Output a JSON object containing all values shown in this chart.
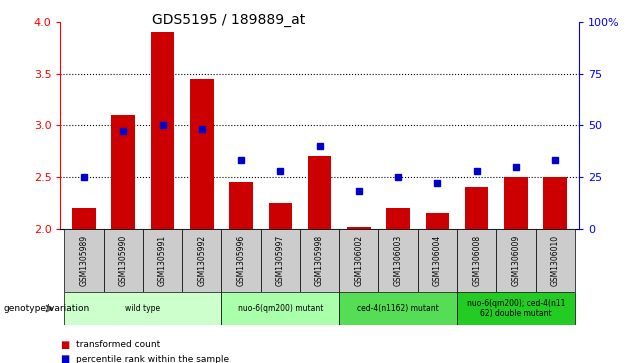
{
  "title": "GDS5195 / 189889_at",
  "samples": [
    "GSM1305989",
    "GSM1305990",
    "GSM1305991",
    "GSM1305992",
    "GSM1305996",
    "GSM1305997",
    "GSM1305998",
    "GSM1306002",
    "GSM1306003",
    "GSM1306004",
    "GSM1306008",
    "GSM1306009",
    "GSM1306010"
  ],
  "bar_values": [
    2.2,
    3.1,
    3.9,
    3.45,
    2.45,
    2.25,
    2.7,
    2.02,
    2.2,
    2.15,
    2.4,
    2.5,
    2.5
  ],
  "dot_values": [
    25,
    47,
    50,
    48,
    33,
    28,
    40,
    18,
    25,
    22,
    28,
    30,
    33
  ],
  "ylim_left": [
    2.0,
    4.0
  ],
  "ylim_right": [
    0,
    100
  ],
  "bar_color": "#cc0000",
  "dot_color": "#0000cc",
  "groups": [
    {
      "label": "wild type",
      "indices": [
        0,
        1,
        2,
        3
      ],
      "color": "#ccffcc"
    },
    {
      "label": "nuo-6(qm200) mutant",
      "indices": [
        4,
        5,
        6
      ],
      "color": "#aaffaa"
    },
    {
      "label": "ced-4(n1162) mutant",
      "indices": [
        7,
        8,
        9
      ],
      "color": "#55dd55"
    },
    {
      "label": "nuo-6(qm200); ced-4(n11\n62) double mutant",
      "indices": [
        10,
        11,
        12
      ],
      "color": "#22cc22"
    }
  ],
  "yticks_left": [
    2.0,
    2.5,
    3.0,
    3.5,
    4.0
  ],
  "yticks_right": [
    0,
    25,
    50,
    75,
    100
  ],
  "tick_bg": "#cccccc"
}
